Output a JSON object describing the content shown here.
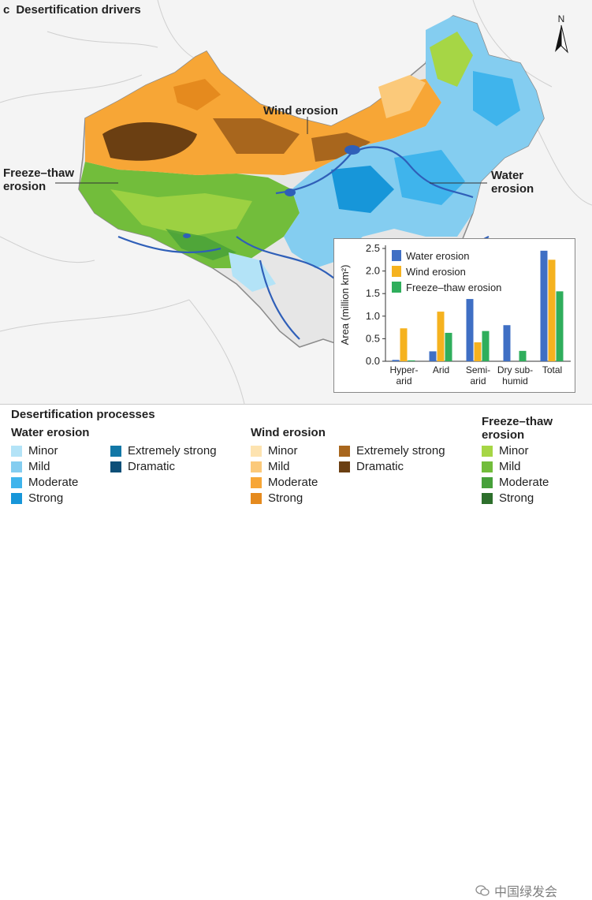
{
  "panel": {
    "letter": "c",
    "title": "Desertification drivers"
  },
  "map_labels": {
    "wind": "Wind erosion",
    "freeze_line1": "Freeze–thaw",
    "freeze_line2": "erosion",
    "water_line1": "Water",
    "water_line2": "erosion"
  },
  "compass": {
    "label": "N"
  },
  "colors": {
    "water": "#3f6fc4",
    "wind": "#f5b21f",
    "freeze": "#2fae5c",
    "background": "#f4f4f4",
    "rivers": "#2f5fb8"
  },
  "chart_data": {
    "type": "bar",
    "ylabel": "Area (million km²)",
    "ylim": [
      0,
      2.5
    ],
    "yticks": [
      "0.0",
      "0.5",
      "1.0",
      "1.5",
      "2.0",
      "2.5"
    ],
    "categories": [
      {
        "line1": "Hyper-",
        "line2": "arid"
      },
      {
        "line1": "Arid",
        "line2": ""
      },
      {
        "line1": "Semi-",
        "line2": "arid"
      },
      {
        "line1": "Dry sub-",
        "line2": "humid"
      },
      {
        "line1": "Total",
        "line2": ""
      }
    ],
    "series": [
      {
        "name": "Water erosion",
        "color": "#3f6fc4",
        "values": [
          0.03,
          0.22,
          1.38,
          0.8,
          2.45
        ]
      },
      {
        "name": "Wind erosion",
        "color": "#f5b21f",
        "values": [
          0.73,
          1.1,
          0.42,
          0.0,
          2.25
        ]
      },
      {
        "name": "Freeze–thaw erosion",
        "color": "#2fae5c",
        "values": [
          0.02,
          0.63,
          0.67,
          0.23,
          1.55
        ]
      }
    ],
    "legend_position": "top-left"
  },
  "legend": {
    "title": "Desertification processes",
    "water": {
      "title": "Water erosion",
      "items": [
        {
          "label": "Minor",
          "color": "#b3e3f7"
        },
        {
          "label": "Mild",
          "color": "#84cdf0"
        },
        {
          "label": "Moderate",
          "color": "#3fb4ec"
        },
        {
          "label": "Strong",
          "color": "#1796d9"
        },
        {
          "label": "Extremely strong",
          "color": "#1277a6"
        },
        {
          "label": "Dramatic",
          "color": "#0d4f78"
        }
      ]
    },
    "wind": {
      "title": "Wind erosion",
      "items": [
        {
          "label": "Minor",
          "color": "#fde3b0"
        },
        {
          "label": "Mild",
          "color": "#fbc97a"
        },
        {
          "label": "Moderate",
          "color": "#f7a636"
        },
        {
          "label": "Strong",
          "color": "#e58a1e"
        },
        {
          "label": "Extremely strong",
          "color": "#a8661d"
        },
        {
          "label": "Dramatic",
          "color": "#6b3f12"
        }
      ]
    },
    "freeze": {
      "title_line1": "Freeze–thaw",
      "title_line2": "erosion",
      "items": [
        {
          "label": "Minor",
          "color": "#a6d645"
        },
        {
          "label": "Mild",
          "color": "#72bd3b"
        },
        {
          "label": "Moderate",
          "color": "#46a03a"
        },
        {
          "label": "Strong",
          "color": "#2d6f2c"
        }
      ]
    }
  },
  "watermark": {
    "text": "中国绿发会"
  }
}
